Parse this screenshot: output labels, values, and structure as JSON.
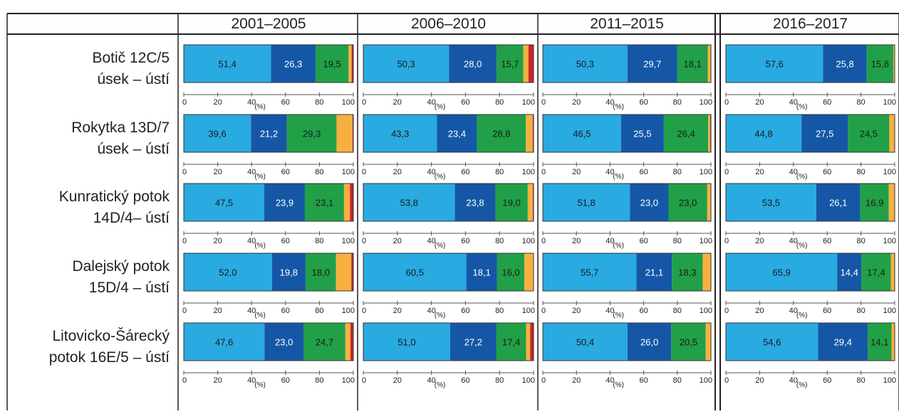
{
  "chart_data": {
    "type": "bar",
    "subtype": "100%-stacked-horizontal-small-multiples",
    "periods": [
      "2001–2005",
      "2006–2010",
      "2011–2015",
      "2016–2017"
    ],
    "rows": [
      {
        "label_line1": "Botič 12C/5",
        "label_line2": "úsek – ústí"
      },
      {
        "label_line1": "Rokytka 13D/7",
        "label_line2": "úsek – ústí"
      },
      {
        "label_line1": "Kunratický potok",
        "label_line2": "14D/4– ústí"
      },
      {
        "label_line1": "Dalejský potok",
        "label_line2": "15D/4 – ústí"
      },
      {
        "label_line1": "Litovicko-Šárecký",
        "label_line2": "potok 16E/5 – ústí"
      }
    ],
    "segment_colors": [
      "#29aae1",
      "#1557a6",
      "#21a047",
      "#f7b040",
      "#c8242b"
    ],
    "values": [
      [
        [
          51.4,
          26.3,
          19.5,
          1.8,
          1.0
        ],
        [
          50.3,
          28.0,
          15.7,
          3.0,
          3.0
        ],
        [
          50.3,
          29.7,
          18.1,
          1.9,
          0
        ],
        [
          57.6,
          25.8,
          15.8,
          0.8,
          0
        ]
      ],
      [
        [
          39.6,
          21.2,
          29.3,
          9.4,
          0.5
        ],
        [
          43.3,
          23.4,
          28.8,
          4.0,
          0.5
        ],
        [
          46.5,
          25.5,
          26.4,
          1.2,
          0.4
        ],
        [
          44.8,
          27.5,
          24.5,
          3.2,
          0
        ]
      ],
      [
        [
          47.5,
          23.9,
          23.1,
          3.5,
          2.0
        ],
        [
          53.8,
          23.8,
          19.0,
          3.0,
          0.4
        ],
        [
          51.8,
          23.0,
          23.0,
          2.2,
          0
        ],
        [
          53.5,
          26.1,
          16.9,
          3.5,
          0
        ]
      ],
      [
        [
          52.0,
          19.8,
          18.0,
          9.0,
          1.2
        ],
        [
          60.5,
          18.1,
          16.0,
          5.4,
          0
        ],
        [
          55.7,
          21.1,
          18.3,
          4.9,
          0
        ],
        [
          65.9,
          14.4,
          17.4,
          2.3,
          0
        ]
      ],
      [
        [
          47.6,
          23.0,
          24.7,
          3.0,
          1.7
        ],
        [
          51.0,
          27.2,
          17.4,
          2.4,
          2.0
        ],
        [
          50.4,
          26.0,
          20.5,
          3.1,
          0
        ],
        [
          54.6,
          29.4,
          14.1,
          1.9,
          0
        ]
      ]
    ],
    "labeled_segments": 3,
    "x_ticks": [
      "0",
      "20",
      "40",
      "60",
      "80",
      "100"
    ],
    "x_unit": "(%)",
    "xlim": [
      0,
      100
    ]
  }
}
